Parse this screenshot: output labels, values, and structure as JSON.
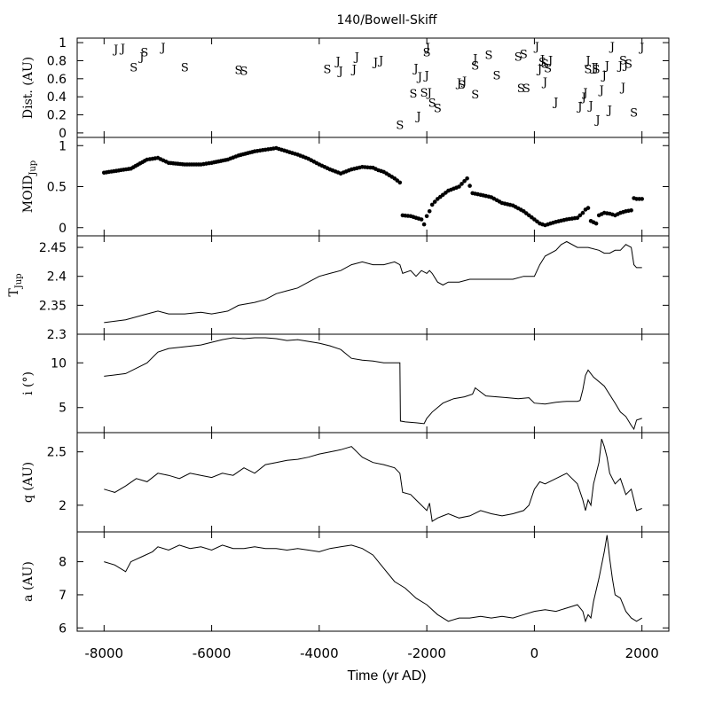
{
  "title": "140/Bowell-Skiff",
  "xlabel": "Time (yr AD)",
  "xlim": [
    -8500,
    2500
  ],
  "x_ticks": [
    -8000,
    -6000,
    -4000,
    -2000,
    0,
    2000
  ],
  "x_tick_labels": [
    "-8000",
    "-6000",
    "-4000",
    "-2000",
    "0",
    "2000"
  ],
  "chart_data": [
    {
      "type": "scatter",
      "id": "dist",
      "ylabel": "Dist. (AU)",
      "ylim": [
        -0.05,
        1.05
      ],
      "y_ticks": [
        0,
        0.2,
        0.4,
        0.6,
        0.8,
        1
      ],
      "y_tick_labels": [
        "0",
        "0.2",
        "0.4",
        "0.6",
        "0.8",
        "1"
      ],
      "series": [
        {
          "name": "J",
          "marker_text": "J",
          "points": [
            [
              -7780,
              0.93
            ],
            [
              -7650,
              0.94
            ],
            [
              -7300,
              0.85
            ],
            [
              -6900,
              0.95
            ],
            [
              -3650,
              0.8
            ],
            [
              -3600,
              0.69
            ],
            [
              -3350,
              0.71
            ],
            [
              -3300,
              0.85
            ],
            [
              -2950,
              0.79
            ],
            [
              -2850,
              0.81
            ],
            [
              -2200,
              0.72
            ],
            [
              -2150,
              0.19
            ],
            [
              -2130,
              0.63
            ],
            [
              -2000,
              0.64
            ],
            [
              -1980,
              0.95
            ],
            [
              -1950,
              0.45
            ],
            [
              -1400,
              0.56
            ],
            [
              -1300,
              0.58
            ],
            [
              -1100,
              0.83
            ],
            [
              50,
              0.96
            ],
            [
              100,
              0.71
            ],
            [
              150,
              0.82
            ],
            [
              200,
              0.57
            ],
            [
              300,
              0.81
            ],
            [
              400,
              0.35
            ],
            [
              850,
              0.3
            ],
            [
              920,
              0.4
            ],
            [
              950,
              0.45
            ],
            [
              1000,
              0.81
            ],
            [
              1050,
              0.31
            ],
            [
              1100,
              0.73
            ],
            [
              1150,
              0.73
            ],
            [
              1180,
              0.15
            ],
            [
              1250,
              0.48
            ],
            [
              1300,
              0.64
            ],
            [
              1350,
              0.75
            ],
            [
              1400,
              0.26
            ],
            [
              1450,
              0.96
            ],
            [
              1600,
              0.75
            ],
            [
              1650,
              0.51
            ],
            [
              1700,
              0.76
            ],
            [
              2000,
              0.95
            ]
          ]
        },
        {
          "name": "S",
          "marker_text": "S",
          "points": [
            [
              -7450,
              0.73
            ],
            [
              -7250,
              0.9
            ],
            [
              -6500,
              0.73
            ],
            [
              -5500,
              0.7
            ],
            [
              -5400,
              0.69
            ],
            [
              -3850,
              0.71
            ],
            [
              -2500,
              0.09
            ],
            [
              -2250,
              0.44
            ],
            [
              -2050,
              0.45
            ],
            [
              -2000,
              0.9
            ],
            [
              -1900,
              0.34
            ],
            [
              -1800,
              0.28
            ],
            [
              -1350,
              0.54
            ],
            [
              -1100,
              0.75
            ],
            [
              -1100,
              0.43
            ],
            [
              -850,
              0.87
            ],
            [
              -700,
              0.64
            ],
            [
              -300,
              0.85
            ],
            [
              -250,
              0.5
            ],
            [
              -200,
              0.88
            ],
            [
              -150,
              0.5
            ],
            [
              150,
              0.79
            ],
            [
              200,
              0.77
            ],
            [
              250,
              0.72
            ],
            [
              1000,
              0.71
            ],
            [
              1150,
              0.71
            ],
            [
              1650,
              0.81
            ],
            [
              1750,
              0.77
            ],
            [
              1850,
              0.23
            ]
          ]
        }
      ]
    },
    {
      "type": "scatter",
      "id": "moid",
      "ylabel": "MOID_Jup",
      "ylabel_main": "MOID",
      "ylabel_sub": "Jup",
      "ylim": [
        -0.1,
        1.1
      ],
      "y_ticks": [
        0,
        0.5,
        1
      ],
      "y_tick_labels": [
        "0",
        "0.5",
        "1"
      ],
      "x": [
        -8000,
        -7500,
        -7200,
        -7000,
        -6800,
        -6500,
        -6200,
        -6000,
        -5700,
        -5500,
        -5200,
        -5000,
        -4800,
        -4600,
        -4400,
        -4200,
        -4000,
        -3800,
        -3600,
        -3400,
        -3200,
        -3000,
        -2900,
        -2800,
        -2600,
        -2500,
        -2450,
        -2300,
        -2200,
        -2100,
        -2050,
        -2000,
        -1950,
        -1900,
        -1800,
        -1600,
        -1400,
        -1250,
        -1150,
        -1000,
        -800,
        -600,
        -400,
        -200,
        -100,
        0,
        100,
        200,
        400,
        600,
        800,
        900,
        950,
        1000,
        1050,
        1150,
        1200,
        1300,
        1400,
        1500,
        1600,
        1700,
        1800,
        1850,
        1900,
        2000
      ],
      "values": [
        0.67,
        0.72,
        0.83,
        0.85,
        0.79,
        0.77,
        0.77,
        0.79,
        0.83,
        0.88,
        0.93,
        0.95,
        0.97,
        0.93,
        0.89,
        0.84,
        0.77,
        0.71,
        0.66,
        0.71,
        0.74,
        0.73,
        0.7,
        0.68,
        0.6,
        0.55,
        0.15,
        0.14,
        0.12,
        0.1,
        0.04,
        0.14,
        0.2,
        0.28,
        0.35,
        0.45,
        0.5,
        0.6,
        0.42,
        0.4,
        0.37,
        0.3,
        0.27,
        0.2,
        0.15,
        0.1,
        0.05,
        0.03,
        0.07,
        0.1,
        0.12,
        0.18,
        0.22,
        0.24,
        0.08,
        0.05,
        0.15,
        0.18,
        0.17,
        0.15,
        0.18,
        0.2,
        0.21,
        0.36,
        0.35,
        0.35
      ]
    },
    {
      "type": "line",
      "id": "tjup",
      "ylabel": "T_Jup",
      "ylabel_main": "T",
      "ylabel_sub": "Jup",
      "ylim": [
        2.3,
        2.47
      ],
      "y_ticks": [
        2.3,
        2.35,
        2.4,
        2.45
      ],
      "y_tick_labels": [
        "2.3",
        "2.35",
        "2.4",
        "2.45"
      ],
      "x": [
        -8000,
        -7600,
        -7200,
        -7000,
        -6800,
        -6500,
        -6200,
        -6000,
        -5700,
        -5500,
        -5200,
        -5000,
        -4800,
        -4600,
        -4400,
        -4200,
        -4000,
        -3800,
        -3600,
        -3400,
        -3200,
        -3000,
        -2800,
        -2600,
        -2500,
        -2450,
        -2300,
        -2200,
        -2100,
        -2000,
        -1950,
        -1900,
        -1800,
        -1700,
        -1600,
        -1400,
        -1200,
        -1000,
        -800,
        -600,
        -400,
        -200,
        0,
        100,
        200,
        400,
        500,
        600,
        800,
        1000,
        1200,
        1300,
        1400,
        1500,
        1600,
        1700,
        1800,
        1850,
        1900,
        2000
      ],
      "values": [
        2.32,
        2.325,
        2.335,
        2.34,
        2.335,
        2.335,
        2.338,
        2.335,
        2.34,
        2.35,
        2.355,
        2.36,
        2.37,
        2.375,
        2.38,
        2.39,
        2.4,
        2.405,
        2.41,
        2.42,
        2.425,
        2.42,
        2.42,
        2.425,
        2.42,
        2.405,
        2.41,
        2.4,
        2.41,
        2.405,
        2.41,
        2.405,
        2.39,
        2.385,
        2.39,
        2.39,
        2.395,
        2.395,
        2.395,
        2.395,
        2.395,
        2.4,
        2.4,
        2.42,
        2.435,
        2.445,
        2.455,
        2.46,
        2.45,
        2.45,
        2.445,
        2.44,
        2.44,
        2.445,
        2.445,
        2.455,
        2.45,
        2.42,
        2.415,
        2.415
      ]
    },
    {
      "type": "line",
      "id": "incl",
      "ylabel": "i (°)",
      "ylim": [
        2.2,
        13.2
      ],
      "y_ticks": [
        5,
        10
      ],
      "y_tick_labels": [
        "5",
        "10"
      ],
      "x": [
        -8000,
        -7600,
        -7200,
        -7000,
        -6800,
        -6500,
        -6200,
        -6000,
        -5800,
        -5600,
        -5400,
        -5200,
        -5000,
        -4800,
        -4600,
        -4400,
        -4200,
        -4000,
        -3800,
        -3600,
        -3400,
        -3200,
        -3000,
        -2800,
        -2600,
        -2500,
        -2490,
        -2400,
        -2200,
        -2050,
        -2000,
        -1900,
        -1700,
        -1500,
        -1300,
        -1150,
        -1100,
        -900,
        -700,
        -500,
        -300,
        -100,
        0,
        200,
        400,
        600,
        800,
        850,
        900,
        950,
        1000,
        1100,
        1300,
        1500,
        1600,
        1700,
        1800,
        1850,
        1900,
        2000
      ],
      "values": [
        8.5,
        8.8,
        10.0,
        11.2,
        11.6,
        11.8,
        12.0,
        12.3,
        12.6,
        12.8,
        12.7,
        12.8,
        12.8,
        12.7,
        12.5,
        12.6,
        12.4,
        12.2,
        11.9,
        11.5,
        10.5,
        10.3,
        10.2,
        10.0,
        10.0,
        10.0,
        3.5,
        3.4,
        3.3,
        3.2,
        3.8,
        4.5,
        5.5,
        6.0,
        6.2,
        6.5,
        7.2,
        6.3,
        6.2,
        6.1,
        6.0,
        6.1,
        5.5,
        5.4,
        5.6,
        5.7,
        5.7,
        5.8,
        7.0,
        8.6,
        9.2,
        8.4,
        7.4,
        5.5,
        4.5,
        4.0,
        3.0,
        2.6,
        3.6,
        3.8
      ]
    },
    {
      "type": "line",
      "id": "q",
      "ylabel": "q (AU)",
      "ylim": [
        1.75,
        2.68
      ],
      "y_ticks": [
        2,
        2.5
      ],
      "y_tick_labels": [
        "2",
        "2.5"
      ],
      "x": [
        -8000,
        -7800,
        -7600,
        -7400,
        -7200,
        -7000,
        -6800,
        -6600,
        -6400,
        -6200,
        -6000,
        -5800,
        -5600,
        -5400,
        -5200,
        -5000,
        -4800,
        -4600,
        -4400,
        -4200,
        -4000,
        -3800,
        -3600,
        -3400,
        -3300,
        -3200,
        -3000,
        -2800,
        -2600,
        -2500,
        -2450,
        -2300,
        -2200,
        -2100,
        -2000,
        -1950,
        -1900,
        -1800,
        -1700,
        -1600,
        -1400,
        -1200,
        -1000,
        -800,
        -600,
        -400,
        -200,
        -100,
        0,
        100,
        200,
        400,
        600,
        800,
        900,
        950,
        1000,
        1050,
        1100,
        1200,
        1250,
        1300,
        1350,
        1400,
        1500,
        1600,
        1700,
        1800,
        1850,
        1900,
        2000
      ],
      "values": [
        2.15,
        2.12,
        2.18,
        2.25,
        2.22,
        2.3,
        2.28,
        2.25,
        2.3,
        2.28,
        2.26,
        2.3,
        2.28,
        2.35,
        2.3,
        2.38,
        2.4,
        2.42,
        2.43,
        2.45,
        2.48,
        2.5,
        2.52,
        2.55,
        2.5,
        2.45,
        2.4,
        2.38,
        2.35,
        2.3,
        2.12,
        2.1,
        2.05,
        2.0,
        1.95,
        2.02,
        1.85,
        1.88,
        1.9,
        1.92,
        1.88,
        1.9,
        1.95,
        1.92,
        1.9,
        1.92,
        1.95,
        2.0,
        2.15,
        2.22,
        2.2,
        2.25,
        2.3,
        2.2,
        2.05,
        1.95,
        2.05,
        2.0,
        2.2,
        2.4,
        2.62,
        2.55,
        2.45,
        2.3,
        2.2,
        2.25,
        2.1,
        2.15,
        2.05,
        1.95,
        1.97
      ]
    },
    {
      "type": "line",
      "id": "a",
      "ylabel": "a (AU)",
      "ylim": [
        5.9,
        8.9
      ],
      "y_ticks": [
        6,
        7,
        8
      ],
      "y_tick_labels": [
        "6",
        "7",
        "8"
      ],
      "x": [
        -8000,
        -7800,
        -7600,
        -7500,
        -7300,
        -7100,
        -7000,
        -6800,
        -6600,
        -6400,
        -6200,
        -6000,
        -5800,
        -5600,
        -5400,
        -5200,
        -5000,
        -4800,
        -4600,
        -4400,
        -4200,
        -4000,
        -3800,
        -3600,
        -3400,
        -3200,
        -3000,
        -2800,
        -2600,
        -2400,
        -2200,
        -2000,
        -1800,
        -1600,
        -1400,
        -1200,
        -1000,
        -800,
        -600,
        -400,
        -200,
        0,
        200,
        400,
        600,
        800,
        900,
        950,
        1000,
        1050,
        1100,
        1200,
        1300,
        1350,
        1400,
        1450,
        1500,
        1600,
        1700,
        1800,
        1900,
        2000
      ],
      "values": [
        8.0,
        7.9,
        7.7,
        8.0,
        8.15,
        8.3,
        8.45,
        8.35,
        8.5,
        8.4,
        8.45,
        8.35,
        8.5,
        8.4,
        8.4,
        8.45,
        8.4,
        8.4,
        8.35,
        8.4,
        8.35,
        8.3,
        8.4,
        8.45,
        8.5,
        8.4,
        8.2,
        7.8,
        7.4,
        7.2,
        6.9,
        6.7,
        6.4,
        6.2,
        6.3,
        6.3,
        6.35,
        6.3,
        6.35,
        6.3,
        6.4,
        6.5,
        6.55,
        6.5,
        6.6,
        6.7,
        6.5,
        6.2,
        6.4,
        6.3,
        6.8,
        7.5,
        8.3,
        8.8,
        8.1,
        7.5,
        7.0,
        6.9,
        6.5,
        6.3,
        6.2,
        6.3
      ]
    }
  ]
}
